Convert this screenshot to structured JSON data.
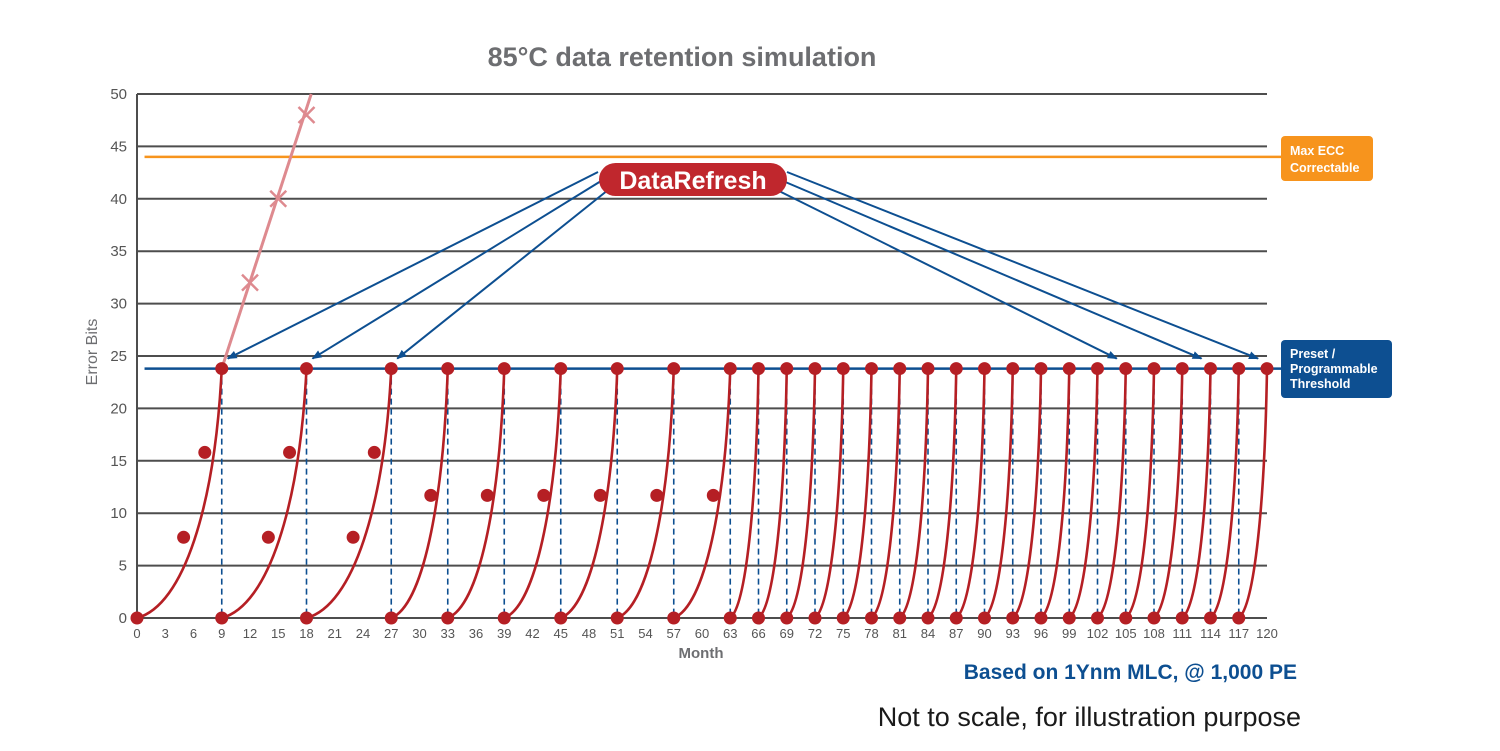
{
  "chart_data": {
    "type": "line",
    "title": "85°C data retention simulation",
    "xlabel": "Month",
    "ylabel": "Error Bits",
    "ylim": [
      0,
      50
    ],
    "xlim": [
      0,
      120
    ],
    "y_ticks": [
      "0",
      "5",
      "10",
      "15",
      "20",
      "25",
      "30",
      "35",
      "40",
      "45",
      "50"
    ],
    "x_ticks": [
      "0",
      "3",
      "6",
      "9",
      "12",
      "15",
      "18",
      "21",
      "24",
      "27",
      "30",
      "33",
      "36",
      "39",
      "42",
      "45",
      "48",
      "51",
      "54",
      "57",
      "60",
      "63",
      "66",
      "69",
      "72",
      "75",
      "78",
      "81",
      "84",
      "87",
      "90",
      "93",
      "96",
      "99",
      "102",
      "105",
      "108",
      "111",
      "114",
      "117",
      "120"
    ],
    "grid": "horizontal",
    "max_ecc": {
      "value": 44,
      "label_line1": "Max ECC",
      "label_line2": "Correctable",
      "color": "#f7941d"
    },
    "threshold": {
      "value": 23.8,
      "label_line1": "Preset /",
      "label_line2": "Programmable",
      "label_line3": "Threshold",
      "color": "#0d4f91"
    },
    "no_refresh_series": {
      "color": "#de8a8f",
      "points": [
        [
          9,
          23.8
        ],
        [
          12,
          32
        ],
        [
          15,
          40
        ],
        [
          18,
          48
        ]
      ],
      "line_end": [
        18.5,
        50
      ]
    },
    "refresh_cycles": {
      "color": "#b51f24",
      "starts": [
        0,
        9,
        18,
        27,
        33,
        39,
        45,
        51,
        57,
        63,
        66,
        69,
        72,
        75,
        78,
        81,
        84,
        87,
        90,
        93,
        96,
        99,
        102,
        105,
        108,
        111,
        114,
        117
      ],
      "ends": [
        9,
        18,
        27,
        33,
        39,
        45,
        51,
        57,
        63,
        66,
        69,
        72,
        75,
        78,
        81,
        84,
        87,
        90,
        93,
        96,
        99,
        102,
        105,
        108,
        111,
        114,
        117,
        120
      ],
      "peak": 23.8,
      "intermediate_points_9mo": [
        [
          0.55,
          7.7
        ],
        [
          0.8,
          15.8
        ]
      ],
      "intermediate_points_6mo": [
        [
          0.7,
          11.7
        ]
      ]
    },
    "data_refresh": {
      "label": "DataRefresh",
      "color": "#c0272d",
      "arrow_targets": [
        9,
        18,
        27,
        105,
        114,
        120
      ],
      "arrow_color": "#0d4f91"
    }
  },
  "notes": {
    "basis": "Based on 1Ynm MLC, @ 1,000 PE",
    "disclaimer": "Not to scale, for illustration purpose"
  }
}
